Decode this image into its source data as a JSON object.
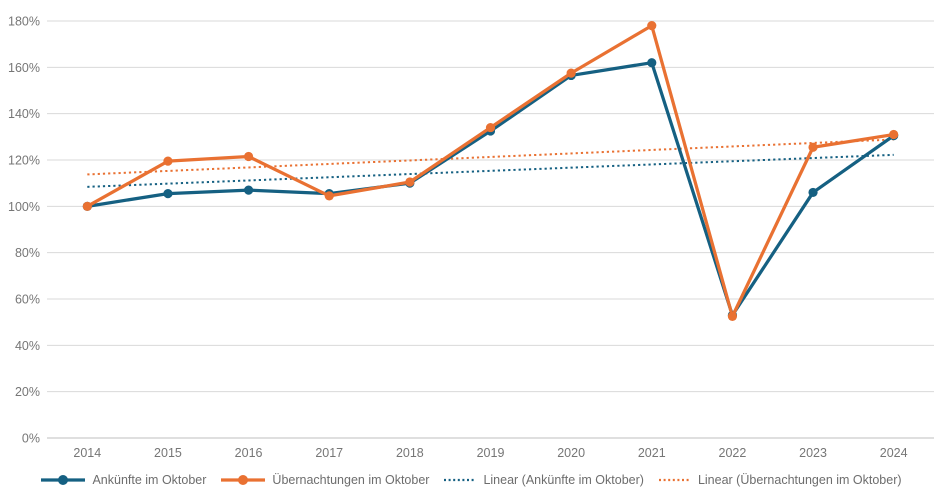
{
  "chart_data": {
    "type": "line",
    "title": "",
    "categories": [
      "2014",
      "2015",
      "2016",
      "2017",
      "2018",
      "2019",
      "2020",
      "2021",
      "2022",
      "2023",
      "2024"
    ],
    "series": [
      {
        "name": "Ankünfte im Oktober",
        "color": "#156082",
        "style": "solid",
        "marker": "circle",
        "values": [
          100,
          105.5,
          107,
          105.5,
          110,
          132.5,
          156.5,
          162,
          53,
          106,
          130.5
        ]
      },
      {
        "name": "Übernachtungen im Oktober",
        "color": "#E97132",
        "style": "solid",
        "marker": "circle",
        "values": [
          100,
          119.5,
          121.5,
          104.5,
          110.5,
          134,
          157.5,
          178,
          52.5,
          125.5,
          131
        ]
      }
    ],
    "trendlines": [
      {
        "name": "Linear (Ankünfte im Oktober)",
        "series": 0,
        "color": "#156082",
        "style": "dotted"
      },
      {
        "name": "Linear (Übernachtungen im Oktober)",
        "series": 1,
        "color": "#E97132",
        "style": "dotted"
      }
    ],
    "ylim": [
      0,
      180
    ],
    "ytick_step": 20,
    "ytick_labels": [
      "0%",
      "20%",
      "40%",
      "60%",
      "80%",
      "100%",
      "120%",
      "140%",
      "160%",
      "180%"
    ],
    "ytick_format": "percent",
    "xlabel": "",
    "ylabel": "",
    "grid": true,
    "legend_position": "bottom",
    "colors": {
      "gridline": "#D9D9D9",
      "zero_line": "#BFBFBF",
      "axis_text": "#767676",
      "legend_text": "#6d6d6d",
      "background": "#ffffff"
    }
  }
}
